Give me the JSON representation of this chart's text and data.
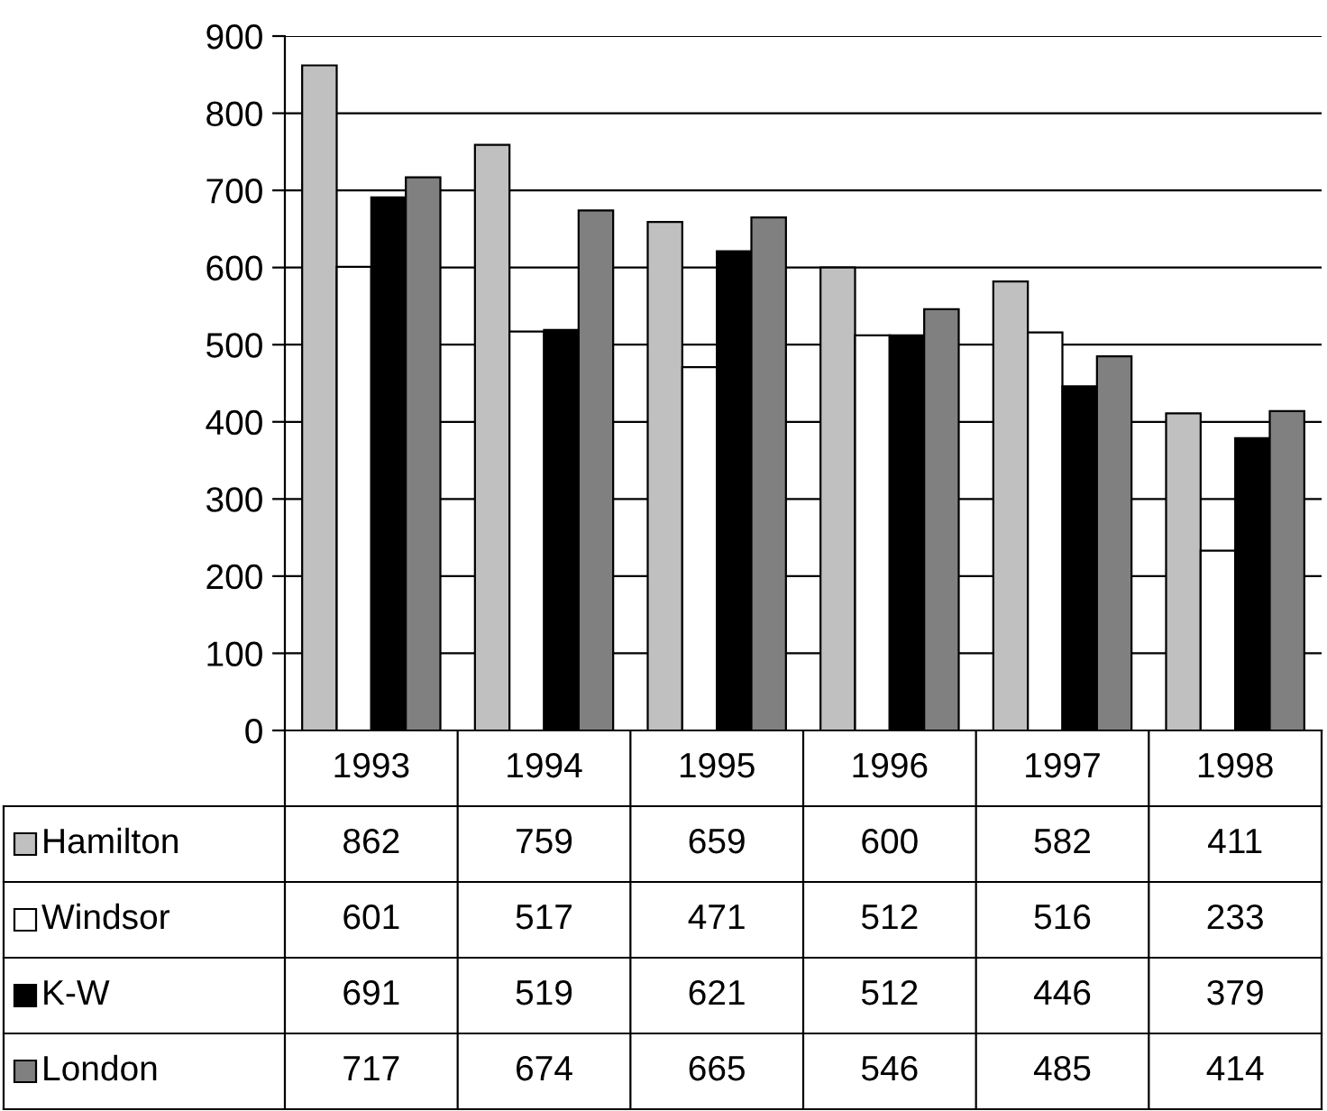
{
  "chart_data": {
    "type": "bar",
    "categories": [
      "1993",
      "1994",
      "1995",
      "1996",
      "1997",
      "1998"
    ],
    "series": [
      {
        "name": "Hamilton",
        "color": "#c0c0c0",
        "values": [
          862,
          759,
          659,
          600,
          582,
          411
        ]
      },
      {
        "name": "Windsor",
        "color": "#ffffff",
        "values": [
          601,
          517,
          471,
          512,
          516,
          233
        ]
      },
      {
        "name": "K-W",
        "color": "#000000",
        "values": [
          691,
          519,
          621,
          512,
          446,
          379
        ]
      },
      {
        "name": "London",
        "color": "#808080",
        "values": [
          717,
          674,
          665,
          546,
          485,
          414
        ]
      }
    ],
    "ylim": [
      0,
      900
    ],
    "yticks": [
      0,
      100,
      200,
      300,
      400,
      500,
      600,
      700,
      800,
      900
    ],
    "grid": "y",
    "legend": "bottom",
    "data_labels": true
  }
}
